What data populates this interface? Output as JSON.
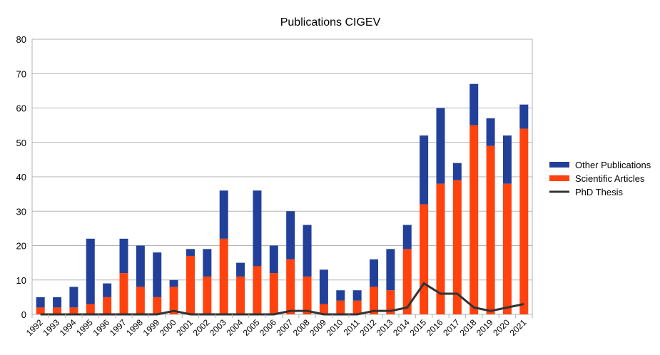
{
  "chart_data": {
    "type": "bar",
    "stacked": true,
    "title": "Publications CIGEV",
    "xlabel": "",
    "ylabel": "",
    "ylim": [
      0,
      80
    ],
    "yticks": [
      0,
      10,
      20,
      30,
      40,
      50,
      60,
      70,
      80
    ],
    "grid": true,
    "legend_position": "right",
    "categories": [
      "1992",
      "1993",
      "1994",
      "1995",
      "1996",
      "1997",
      "1998",
      "1999",
      "2000",
      "2001",
      "2002",
      "2003",
      "2004",
      "2005",
      "2006",
      "2007",
      "2008",
      "2009",
      "2010",
      "2011",
      "2012",
      "2013",
      "2014",
      "2015",
      "2016",
      "2017",
      "2018",
      "2019",
      "2020",
      "2021"
    ],
    "series": [
      {
        "name": "Scientific Articles",
        "type": "bar",
        "color": "#ff420e",
        "values": [
          2,
          2,
          2,
          3,
          5,
          12,
          8,
          5,
          8,
          17,
          11,
          22,
          11,
          14,
          12,
          16,
          11,
          3,
          4,
          4,
          8,
          7,
          19,
          32,
          38,
          39,
          55,
          49,
          38,
          54
        ]
      },
      {
        "name": "Other Publications",
        "type": "bar",
        "color": "#224099",
        "values": [
          3,
          3,
          6,
          19,
          4,
          10,
          12,
          13,
          2,
          2,
          8,
          14,
          4,
          22,
          8,
          14,
          15,
          10,
          3,
          3,
          8,
          12,
          7,
          20,
          22,
          5,
          12,
          8,
          14,
          7
        ]
      },
      {
        "name": "PhD Thesis",
        "type": "line",
        "color": "#333333",
        "values": [
          0,
          0,
          0,
          0,
          0,
          0,
          0,
          0,
          1,
          0,
          0,
          0,
          0,
          0,
          0,
          1,
          1,
          0,
          0,
          0,
          1,
          1,
          2,
          9,
          6,
          6,
          2,
          1,
          2,
          3
        ]
      }
    ],
    "legend_order": [
      "Other Publications",
      "Scientific Articles",
      "PhD Thesis"
    ]
  }
}
